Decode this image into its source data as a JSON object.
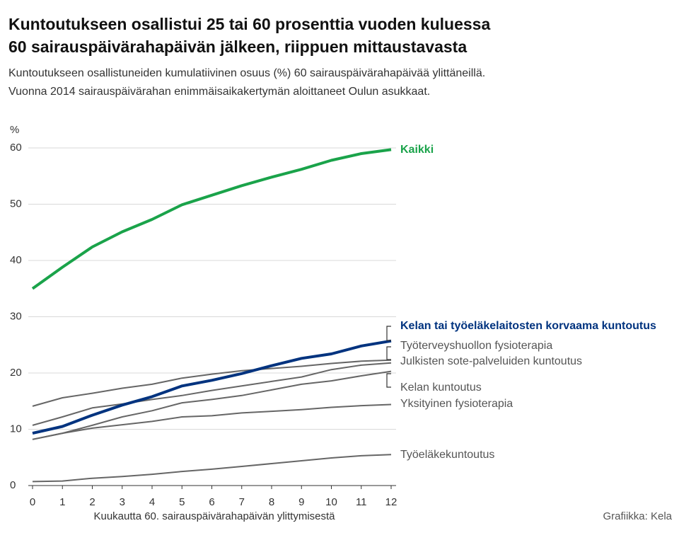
{
  "chart_data": {
    "type": "line",
    "title": "Kuntoutukseen osallistui 25 tai 60 prosenttia vuoden kuluessa 60 sairauspäivärahapäivän jälkeen, riippuen mittaustavasta",
    "subtitle": [
      "Kuntoutukseen osallistuneiden kumulatiivinen osuus (%) 60 sairauspäivärahapäivää ylittäneillä.",
      "Vuonna 2014 sairauspäivärahan enimmäisaikakertymän aloittaneet Oulun asukkaat."
    ],
    "ylabel": "%",
    "xlabel": "Kuukautta 60. sairauspäivärahapäivän ylittymisestä",
    "source": "Grafiikka: Kela",
    "x": [
      0,
      1,
      2,
      3,
      4,
      5,
      6,
      7,
      8,
      9,
      10,
      11,
      12
    ],
    "xlim": [
      0,
      12
    ],
    "xticks": [
      0,
      1,
      2,
      3,
      4,
      5,
      6,
      7,
      8,
      9,
      10,
      11,
      12
    ],
    "ylim": [
      0,
      60
    ],
    "yticks": [
      0,
      10,
      20,
      30,
      40,
      50,
      60
    ],
    "grid": true,
    "series": [
      {
        "name": "Kaikki",
        "color": "#1aa34a",
        "values": [
          35,
          38.8,
          42.4,
          45.1,
          47.3,
          49.9,
          51.6,
          53.3,
          54.8,
          56.2,
          57.8,
          59.0,
          59.7
        ]
      },
      {
        "name": "Kelan tai työeläkelaitosten korvaama kuntoutus",
        "color": "#00337f",
        "values": [
          9.3,
          10.5,
          12.5,
          14.3,
          15.8,
          17.7,
          18.7,
          19.9,
          21.3,
          22.6,
          23.4,
          24.8,
          25.7
        ]
      },
      {
        "name": "Työterveyshuollon fysioterapia",
        "color": "#666666",
        "values": [
          14.1,
          15.6,
          16.4,
          17.3,
          18.0,
          19.1,
          19.8,
          20.4,
          20.8,
          21.2,
          21.7,
          22.1,
          22.3
        ]
      },
      {
        "name": "Julkisten sote-palveluiden kuntoutus",
        "color": "#666666",
        "values": [
          10.7,
          12.2,
          13.8,
          14.5,
          15.3,
          16.0,
          16.9,
          17.7,
          18.5,
          19.3,
          20.6,
          21.4,
          21.8
        ]
      },
      {
        "name": "Kelan kuntoutus",
        "color": "#666666",
        "values": [
          8.2,
          9.3,
          10.7,
          12.2,
          13.3,
          14.7,
          15.3,
          16.0,
          17.0,
          18.0,
          18.6,
          19.5,
          20.3
        ]
      },
      {
        "name": "Yksityinen fysioterapia",
        "color": "#666666",
        "values": [
          8.2,
          9.3,
          10.2,
          10.8,
          11.4,
          12.2,
          12.4,
          12.9,
          13.2,
          13.5,
          13.9,
          14.2,
          14.4
        ]
      },
      {
        "name": "Työeläkekuntoutus",
        "color": "#666666",
        "values": [
          0.7,
          0.8,
          1.3,
          1.6,
          2.0,
          2.5,
          2.9,
          3.4,
          3.9,
          4.4,
          4.9,
          5.3,
          5.5
        ]
      }
    ]
  }
}
